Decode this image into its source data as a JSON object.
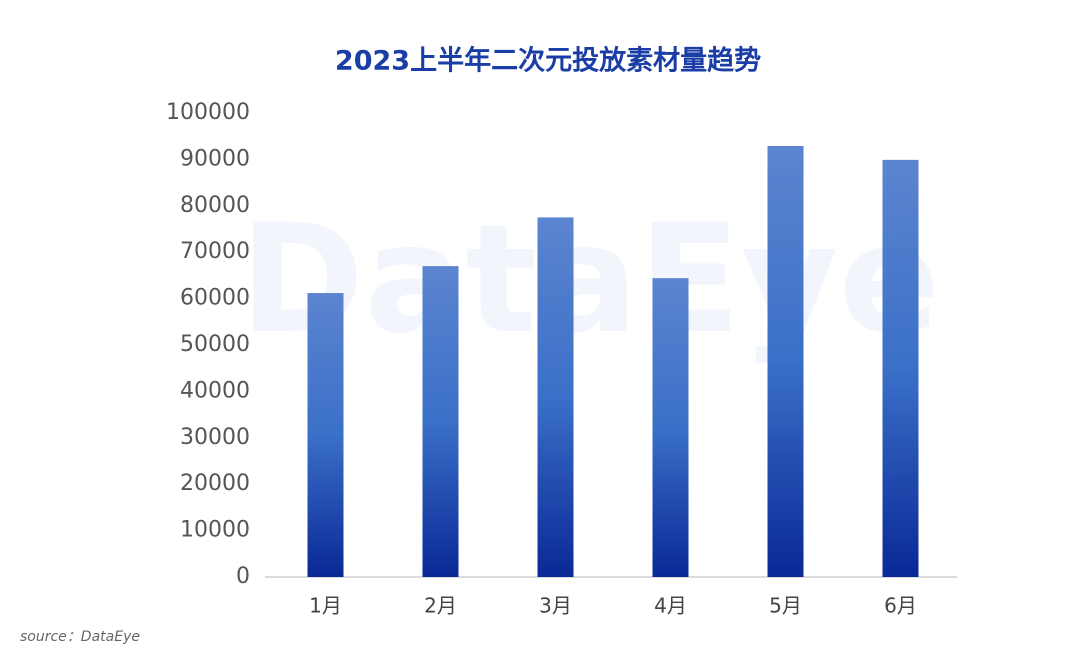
{
  "chart_data": {
    "type": "bar",
    "title": "2023上半年二次元投放素材量趋势",
    "categories": [
      "1月",
      "2月",
      "3月",
      "4月",
      "5月",
      "6月"
    ],
    "values": [
      61200,
      67000,
      77500,
      64400,
      92900,
      89900
    ],
    "color": "#3a70c8",
    "gradient_colors": [
      "#5c84d0",
      "#3a70c8",
      "#0a2896"
    ],
    "ylim": [
      0,
      100000
    ],
    "yticks": [
      0,
      10000,
      20000,
      30000,
      40000,
      50000,
      60000,
      70000,
      80000,
      90000,
      100000
    ],
    "grid": false,
    "watermark": "DataEye",
    "source": "source：DataEye"
  }
}
